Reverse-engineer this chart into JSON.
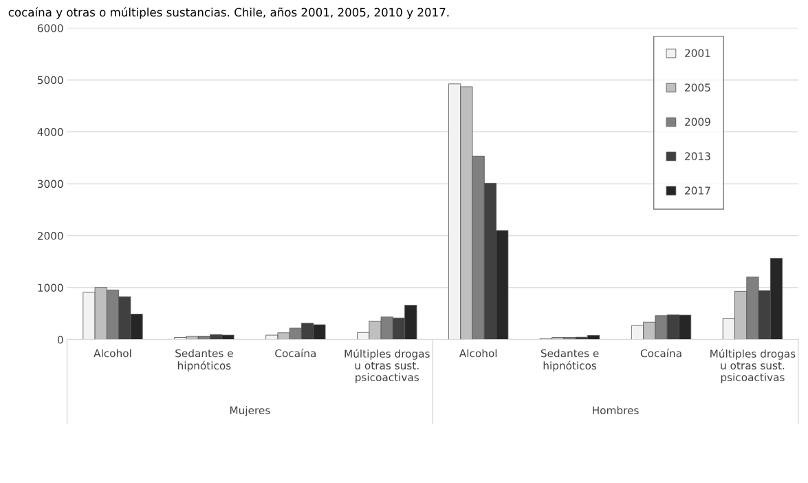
{
  "chart_data": {
    "type": "bar",
    "title": "cocaína y otras o múltiples sustancias. Chile, años 2001, 2005, 2010 y 2017.",
    "categories": [
      "Alcohol",
      "Sedantes e\nhipnóticos",
      "Cocaína",
      "Múltiples drogas\nu otras sust.\npsicoactivas",
      "Alcohol",
      "Sedantes e\nhipnóticos",
      "Cocaína",
      "Múltiples drogas\nu otras sust.\npsicoactivas"
    ],
    "series": [
      {
        "name": "2001",
        "color": "#f2f2f2",
        "values": [
          910,
          40,
          85,
          135,
          4925,
          25,
          270,
          410
        ]
      },
      {
        "name": "2005",
        "color": "#bfbfbf",
        "values": [
          1005,
          65,
          130,
          350,
          4870,
          40,
          335,
          930
        ]
      },
      {
        "name": "2009",
        "color": "#808080",
        "values": [
          955,
          65,
          220,
          435,
          3530,
          40,
          460,
          1205
        ]
      },
      {
        "name": "2013",
        "color": "#404040",
        "values": [
          825,
          95,
          315,
          415,
          3010,
          45,
          475,
          940
        ]
      },
      {
        "name": "2017",
        "color": "#262626",
        "values": [
          490,
          85,
          285,
          660,
          2100,
          80,
          470,
          1565
        ]
      }
    ],
    "annotations": [
      "Mujeres",
      "Hombres"
    ],
    "ylim": [
      0,
      6000
    ],
    "yticks": [
      0,
      1000,
      2000,
      3000,
      4000,
      5000,
      6000
    ],
    "grid": "y",
    "legend": "top right"
  }
}
